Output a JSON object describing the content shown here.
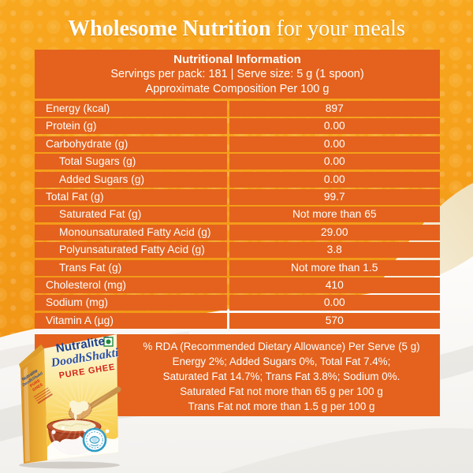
{
  "banner": {
    "title_bold": "Wholesome Nutrition",
    "title_regular": " for your meals"
  },
  "table": {
    "title": "Nutritional Information",
    "serving_line": "Servings per pack: 181 | Serve size: 5 g (1 spoon)",
    "composition_line": "Approximate Composition Per 100 g",
    "rows": [
      {
        "label": "Energy (kcal)",
        "value": "897",
        "indent": false
      },
      {
        "label": "Protein (g)",
        "value": "0.00",
        "indent": false
      },
      {
        "label": "Carbohydrate (g)",
        "value": "0.00",
        "indent": false
      },
      {
        "label": "Total Sugars (g)",
        "value": "0.00",
        "indent": true
      },
      {
        "label": "Added Sugars (g)",
        "value": "0.00",
        "indent": true
      },
      {
        "label": "Total Fat (g)",
        "value": "99.7",
        "indent": false
      },
      {
        "label": "Saturated Fat (g)",
        "value": "Not more than 65",
        "indent": true
      },
      {
        "label": "Monounsaturated Fatty Acid (g)",
        "value": "29.00",
        "indent": true
      },
      {
        "label": "Polyunsaturated Fatty Acid (g)",
        "value": "3.8",
        "indent": true
      },
      {
        "label": "Trans Fat (g)",
        "value": "Not more than 1.5",
        "indent": true
      },
      {
        "label": "Cholesterol (mg)",
        "value": "410",
        "indent": false
      },
      {
        "label": "Sodium (mg)",
        "value": "0.00",
        "indent": false
      },
      {
        "label": "Vitamin A (µg)",
        "value": "570",
        "indent": false
      }
    ]
  },
  "rda": {
    "lines": [
      "% RDA (Recommended Dietary Allowance) Per Serve (5 g)",
      "Energy 2%; Added Sugars 0%, Total Fat 7.4%;",
      "Saturated Fat 14.7%; Trans Fat 3.8%; Sodium 0%.",
      "Saturated Fat not more than 65 g per 100 g",
      "Trans Fat not more than 1.5 g per 100 g"
    ]
  },
  "product": {
    "brand": "Nutralite",
    "trademark": "™",
    "sub_brand": "DoodhShakti",
    "variant": "PURE GHEE",
    "side_brand": "Nutralite",
    "side_sub_brand": "DoodhShakti",
    "side_variant": "PURE GHEE",
    "icons": {
      "veg_mark": "green-veg-mark-icon",
      "quality_seal": "blue-quality-seal-badge"
    }
  },
  "colors": {
    "background_orange": "#F39A18",
    "panel_orange": "#E4621D",
    "gold_divider": "#F2A93B",
    "text_white": "#FFFFFF",
    "brand_blue": "#1B3E8F",
    "script_blue": "#2A50A4",
    "ghee_red": "#D2251D",
    "seal_blue": "#2E9BC6",
    "veg_green": "#1E8A3C",
    "pot_terracotta": "#C0512B",
    "ghee_cream": "#F7EFC8"
  }
}
